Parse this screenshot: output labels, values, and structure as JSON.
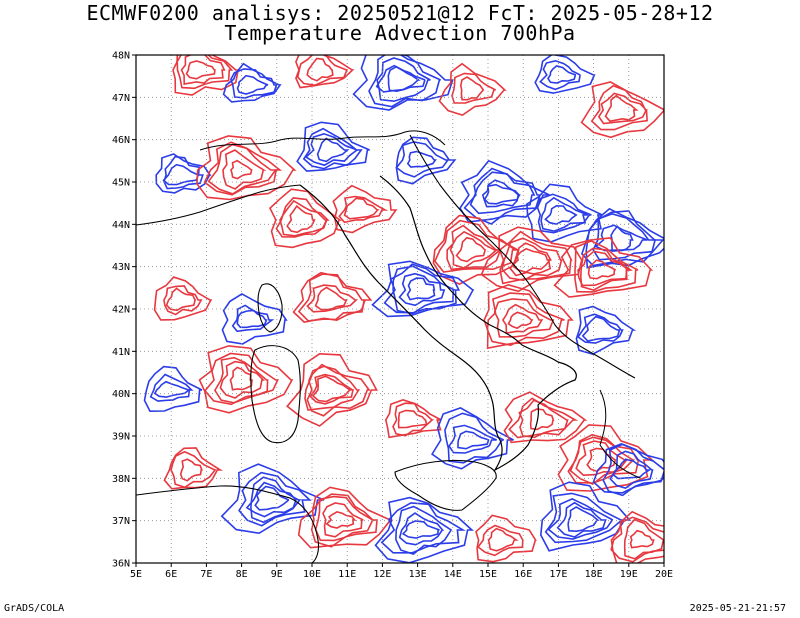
{
  "header": {
    "title_line1": "ECMWF0200 analisys: 20250521@12 FcT: 2025-05-28+12",
    "title_line2": "Temperature Advection 700hPa"
  },
  "axes": {
    "lon_labels": [
      "5E",
      "6E",
      "7E",
      "8E",
      "9E",
      "10E",
      "11E",
      "12E",
      "13E",
      "14E",
      "15E",
      "16E",
      "17E",
      "18E",
      "19E",
      "20E"
    ],
    "lat_labels": [
      "48N",
      "47N",
      "46N",
      "45N",
      "44N",
      "43N",
      "42N",
      "41N",
      "40N",
      "39N",
      "38N",
      "37N",
      "36N"
    ],
    "lon_range": [
      5,
      20
    ],
    "lat_range": [
      36,
      48
    ]
  },
  "contours": {
    "positive_color": "#e8383f",
    "negative_color": "#2b3de8",
    "coast_color": "#000000",
    "grid": "dotted"
  },
  "footer": {
    "left": "GrADS/COLA",
    "right": "2025-05-21-21:57"
  }
}
